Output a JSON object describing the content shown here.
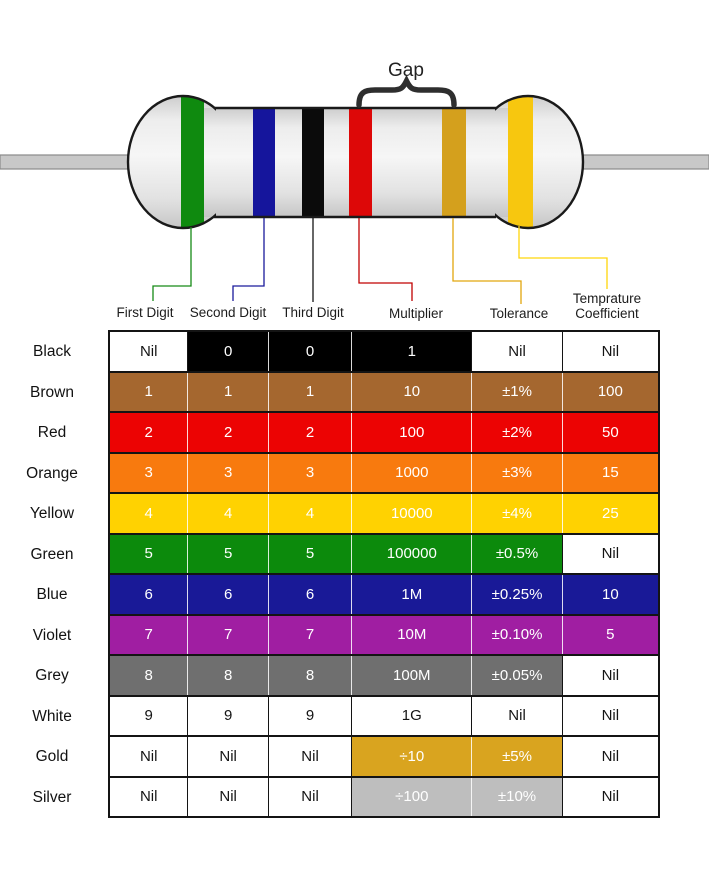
{
  "resistor": {
    "gap_label": "Gap",
    "bands": [
      {
        "id": "green",
        "color": "#0F8A0F",
        "line_color": "#168A16",
        "connects_to": "First Digit"
      },
      {
        "id": "blue",
        "color": "#15159C",
        "line_color": "#1A1A9C",
        "connects_to": "Second Digit"
      },
      {
        "id": "black",
        "color": "#0B0B0B",
        "line_color": "#151515",
        "connects_to": "Third Digit"
      },
      {
        "id": "red",
        "color": "#DD0808",
        "line_color": "#C00000",
        "connects_to": "Multiplier"
      },
      {
        "id": "gold",
        "color": "#D4A01D",
        "line_color": "#E2A60E",
        "connects_to": "Tolerance"
      },
      {
        "id": "yellow",
        "color": "#F7C70F",
        "line_color": "#FFD60A",
        "connects_to": "Temprature Coefficient"
      }
    ]
  },
  "table": {
    "columns": [
      "First Digit",
      "Second Digit",
      "Third Digit",
      "Multiplier",
      "Tolerance",
      "Temprature Coefficient"
    ],
    "rows": [
      {
        "label": "Black",
        "color": "#000000",
        "cells": [
          {
            "text": "Nil",
            "colored": false
          },
          {
            "text": "0",
            "colored": true
          },
          {
            "text": "0",
            "colored": true
          },
          {
            "text": "1",
            "colored": true
          },
          {
            "text": "Nil",
            "colored": false
          },
          {
            "text": "Nil",
            "colored": false
          }
        ]
      },
      {
        "label": "Brown",
        "color": "#A5672F",
        "cells": [
          {
            "text": "1",
            "colored": true
          },
          {
            "text": "1",
            "colored": true
          },
          {
            "text": "1",
            "colored": true
          },
          {
            "text": "10",
            "colored": true
          },
          {
            "text": "±1%",
            "colored": true
          },
          {
            "text": "100",
            "colored": true
          }
        ]
      },
      {
        "label": "Red",
        "color": "#EC0303",
        "cells": [
          {
            "text": "2",
            "colored": true
          },
          {
            "text": "2",
            "colored": true
          },
          {
            "text": "2",
            "colored": true
          },
          {
            "text": "100",
            "colored": true
          },
          {
            "text": "±2%",
            "colored": true
          },
          {
            "text": "50",
            "colored": true
          }
        ]
      },
      {
        "label": "Orange",
        "color": "#F87A0E",
        "cells": [
          {
            "text": "3",
            "colored": true
          },
          {
            "text": "3",
            "colored": true
          },
          {
            "text": "3",
            "colored": true
          },
          {
            "text": "1000",
            "colored": true
          },
          {
            "text": "±3%",
            "colored": true
          },
          {
            "text": "15",
            "colored": true
          }
        ]
      },
      {
        "label": "Yellow",
        "color": "#FFD201",
        "cells": [
          {
            "text": "4",
            "colored": true
          },
          {
            "text": "4",
            "colored": true
          },
          {
            "text": "4",
            "colored": true
          },
          {
            "text": "10000",
            "colored": true
          },
          {
            "text": "±4%",
            "colored": true
          },
          {
            "text": "25",
            "colored": true
          }
        ]
      },
      {
        "label": "Green",
        "color": "#0C8A0C",
        "cells": [
          {
            "text": "5",
            "colored": true
          },
          {
            "text": "5",
            "colored": true
          },
          {
            "text": "5",
            "colored": true
          },
          {
            "text": "100000",
            "colored": true
          },
          {
            "text": "±0.5%",
            "colored": true
          },
          {
            "text": "Nil",
            "colored": false
          }
        ]
      },
      {
        "label": "Blue",
        "color": "#191997",
        "cells": [
          {
            "text": "6",
            "colored": true
          },
          {
            "text": "6",
            "colored": true
          },
          {
            "text": "6",
            "colored": true
          },
          {
            "text": "1M",
            "colored": true
          },
          {
            "text": "±0.25%",
            "colored": true
          },
          {
            "text": "10",
            "colored": true
          }
        ]
      },
      {
        "label": "Violet",
        "color": "#A01EA2",
        "cells": [
          {
            "text": "7",
            "colored": true
          },
          {
            "text": "7",
            "colored": true
          },
          {
            "text": "7",
            "colored": true
          },
          {
            "text": "10M",
            "colored": true
          },
          {
            "text": "±0.10%",
            "colored": true
          },
          {
            "text": "5",
            "colored": true
          }
        ]
      },
      {
        "label": "Grey",
        "color": "#6F6F6F",
        "cells": [
          {
            "text": "8",
            "colored": true
          },
          {
            "text": "8",
            "colored": true
          },
          {
            "text": "8",
            "colored": true
          },
          {
            "text": "100M",
            "colored": true
          },
          {
            "text": "±0.05%",
            "colored": true
          },
          {
            "text": "Nil",
            "colored": false
          }
        ]
      },
      {
        "label": "White",
        "color": "#FFFFFF",
        "cells": [
          {
            "text": "9",
            "colored": false
          },
          {
            "text": "9",
            "colored": false
          },
          {
            "text": "9",
            "colored": false
          },
          {
            "text": "1G",
            "colored": false
          },
          {
            "text": "Nil",
            "colored": false
          },
          {
            "text": "Nil",
            "colored": false
          }
        ]
      },
      {
        "label": "Gold",
        "color": "#D9A41F",
        "cells": [
          {
            "text": "Nil",
            "colored": false
          },
          {
            "text": "Nil",
            "colored": false
          },
          {
            "text": "Nil",
            "colored": false
          },
          {
            "text": "÷10",
            "colored": true
          },
          {
            "text": "±5%",
            "colored": true
          },
          {
            "text": "Nil",
            "colored": false
          }
        ]
      },
      {
        "label": "Silver",
        "color": "#BEBEBE",
        "cells": [
          {
            "text": "Nil",
            "colored": false
          },
          {
            "text": "Nil",
            "colored": false
          },
          {
            "text": "Nil",
            "colored": false
          },
          {
            "text": "÷100",
            "colored": true
          },
          {
            "text": "±10%",
            "colored": true
          },
          {
            "text": "Nil",
            "colored": false
          }
        ]
      }
    ]
  }
}
